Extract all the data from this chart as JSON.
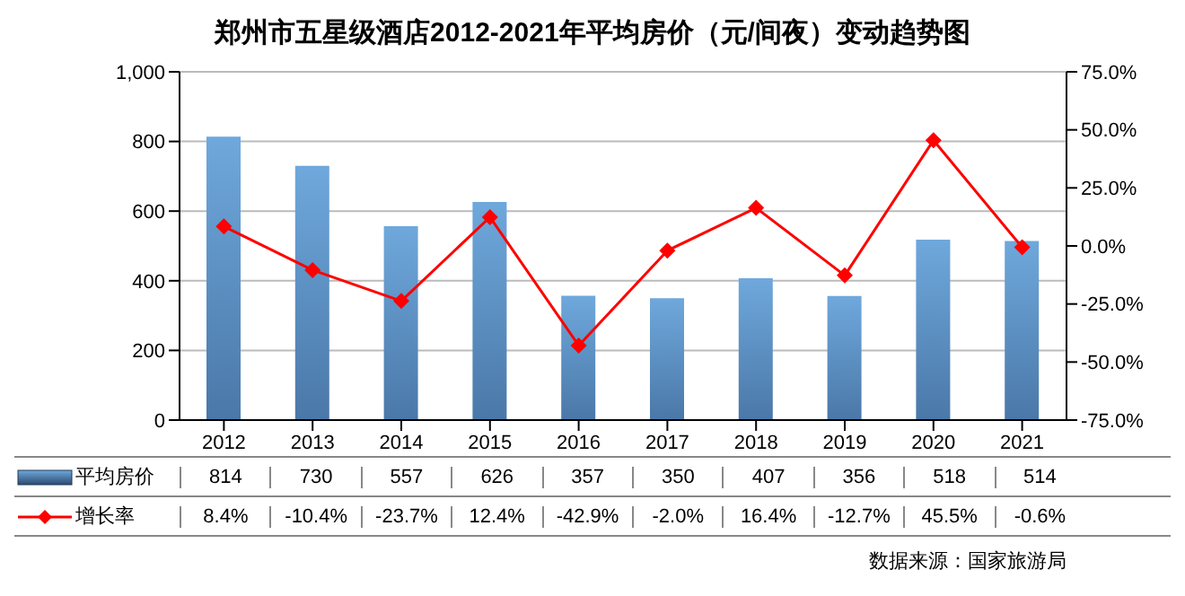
{
  "chart_data": {
    "type": "bar",
    "title": "郑州市五星级酒店2012-2021年平均房价（元/间夜）变动趋势图",
    "categories": [
      "2012",
      "2013",
      "2014",
      "2015",
      "2016",
      "2017",
      "2018",
      "2019",
      "2020",
      "2021"
    ],
    "series": [
      {
        "name": "平均房价",
        "color": "#6fa8dc",
        "values": [
          814,
          730,
          557,
          626,
          357,
          350,
          407,
          356,
          518,
          514
        ],
        "value_labels": [
          "814",
          "730",
          "557",
          "626",
          "357",
          "350",
          "407",
          "356",
          "518",
          "514"
        ]
      },
      {
        "name": "增长率",
        "type": "line",
        "axis": "y2",
        "color": "#ff0000",
        "marker": "diamond",
        "values": [
          8.4,
          -10.4,
          -23.7,
          12.4,
          -42.9,
          -2.0,
          16.4,
          -12.7,
          45.5,
          -0.6
        ],
        "value_labels": [
          "8.4%",
          "-10.4%",
          "-23.7%",
          "12.4%",
          "-42.9%",
          "-2.0%",
          "16.4%",
          "-12.7%",
          "45.5%",
          "-0.6%"
        ]
      }
    ],
    "ylim": [
      0,
      1000
    ],
    "yticks": [
      0,
      200,
      400,
      600,
      800,
      {
        "value": 1000,
        "label": "1,000"
      }
    ],
    "y2lim": [
      -75,
      75
    ],
    "y2ticks": [
      {
        "value": -75,
        "label": "-75.0%"
      },
      {
        "value": -50,
        "label": "-50.0%"
      },
      {
        "value": -25,
        "label": "-25.0%"
      },
      {
        "value": 0,
        "label": "0.0%"
      },
      {
        "value": 25,
        "label": "25.0%"
      },
      {
        "value": 50,
        "label": "50.0%"
      },
      {
        "value": 75,
        "label": "75.0%"
      }
    ],
    "grid": "y",
    "legend": "bottom",
    "annotations": [
      "数据来源：国家旅游局"
    ]
  }
}
